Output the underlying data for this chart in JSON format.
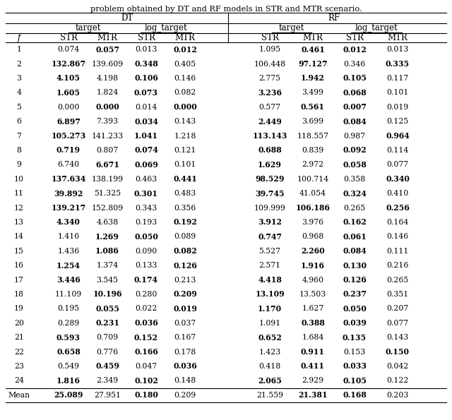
{
  "title_top": "problem obtained by DT and RF models in STR and MTR scenario.",
  "rows": [
    {
      "f": "1",
      "v": [
        "0.074",
        "0.057",
        "0.013",
        "0.012",
        "1.095",
        "0.461",
        "0.012",
        "0.013"
      ],
      "b": [
        false,
        true,
        false,
        true,
        false,
        true,
        true,
        false
      ]
    },
    {
      "f": "2",
      "v": [
        "132.867",
        "139.609",
        "0.348",
        "0.405",
        "106.448",
        "97.127",
        "0.346",
        "0.335"
      ],
      "b": [
        true,
        false,
        true,
        false,
        false,
        true,
        false,
        true
      ]
    },
    {
      "f": "3",
      "v": [
        "4.105",
        "4.198",
        "0.106",
        "0.146",
        "2.775",
        "1.942",
        "0.105",
        "0.117"
      ],
      "b": [
        true,
        false,
        true,
        false,
        false,
        true,
        true,
        false
      ]
    },
    {
      "f": "4",
      "v": [
        "1.605",
        "1.824",
        "0.073",
        "0.082",
        "3.236",
        "3.499",
        "0.068",
        "0.101"
      ],
      "b": [
        true,
        false,
        true,
        false,
        true,
        false,
        true,
        false
      ]
    },
    {
      "f": "5",
      "v": [
        "0.000",
        "0.000",
        "0.014",
        "0.000",
        "0.577",
        "0.561",
        "0.007",
        "0.019"
      ],
      "b": [
        false,
        true,
        false,
        true,
        false,
        true,
        true,
        false
      ]
    },
    {
      "f": "6",
      "v": [
        "6.897",
        "7.393",
        "0.034",
        "0.143",
        "2.449",
        "3.699",
        "0.084",
        "0.125"
      ],
      "b": [
        true,
        false,
        true,
        false,
        true,
        false,
        true,
        false
      ]
    },
    {
      "f": "7",
      "v": [
        "105.273",
        "141.233",
        "1.041",
        "1.218",
        "113.143",
        "118.557",
        "0.987",
        "0.964"
      ],
      "b": [
        true,
        false,
        true,
        false,
        true,
        false,
        false,
        true
      ]
    },
    {
      "f": "8",
      "v": [
        "0.719",
        "0.807",
        "0.074",
        "0.121",
        "0.688",
        "0.839",
        "0.092",
        "0.114"
      ],
      "b": [
        true,
        false,
        true,
        false,
        true,
        false,
        true,
        false
      ]
    },
    {
      "f": "9",
      "v": [
        "6.740",
        "6.671",
        "0.069",
        "0.101",
        "1.629",
        "2.972",
        "0.058",
        "0.077"
      ],
      "b": [
        false,
        true,
        true,
        false,
        true,
        false,
        true,
        false
      ]
    },
    {
      "f": "10",
      "v": [
        "137.634",
        "138.199",
        "0.463",
        "0.441",
        "98.529",
        "100.714",
        "0.358",
        "0.340"
      ],
      "b": [
        true,
        false,
        false,
        true,
        true,
        false,
        false,
        true
      ]
    },
    {
      "f": "11",
      "v": [
        "39.892",
        "51.325",
        "0.301",
        "0.483",
        "39.745",
        "41.054",
        "0.324",
        "0.410"
      ],
      "b": [
        true,
        false,
        true,
        false,
        true,
        false,
        true,
        false
      ]
    },
    {
      "f": "12",
      "v": [
        "139.217",
        "152.809",
        "0.343",
        "0.356",
        "109.999",
        "106.186",
        "0.265",
        "0.256"
      ],
      "b": [
        true,
        false,
        false,
        false,
        false,
        true,
        false,
        true
      ]
    },
    {
      "f": "13",
      "v": [
        "4.340",
        "4.638",
        "0.193",
        "0.192",
        "3.912",
        "3.976",
        "0.162",
        "0.164"
      ],
      "b": [
        true,
        false,
        false,
        true,
        true,
        false,
        true,
        false
      ]
    },
    {
      "f": "14",
      "v": [
        "1.416",
        "1.269",
        "0.050",
        "0.089",
        "0.747",
        "0.968",
        "0.061",
        "0.146"
      ],
      "b": [
        false,
        true,
        true,
        false,
        true,
        false,
        true,
        false
      ]
    },
    {
      "f": "15",
      "v": [
        "1.436",
        "1.086",
        "0.090",
        "0.082",
        "5.527",
        "2.260",
        "0.084",
        "0.111"
      ],
      "b": [
        false,
        true,
        false,
        true,
        false,
        true,
        true,
        false
      ]
    },
    {
      "f": "16",
      "v": [
        "1.254",
        "1.374",
        "0.133",
        "0.126",
        "2.571",
        "1.916",
        "0.130",
        "0.216"
      ],
      "b": [
        true,
        false,
        false,
        true,
        false,
        true,
        true,
        false
      ]
    },
    {
      "f": "17",
      "v": [
        "3.446",
        "3.545",
        "0.174",
        "0.213",
        "4.418",
        "4.960",
        "0.126",
        "0.265"
      ],
      "b": [
        true,
        false,
        true,
        false,
        true,
        false,
        true,
        false
      ]
    },
    {
      "f": "18",
      "v": [
        "11.109",
        "10.196",
        "0.280",
        "0.209",
        "13.109",
        "13.503",
        "0.237",
        "0.351"
      ],
      "b": [
        false,
        true,
        false,
        true,
        true,
        false,
        true,
        false
      ]
    },
    {
      "f": "19",
      "v": [
        "0.195",
        "0.055",
        "0.022",
        "0.019",
        "1.170",
        "1.627",
        "0.050",
        "0.207"
      ],
      "b": [
        false,
        true,
        false,
        true,
        true,
        false,
        true,
        false
      ]
    },
    {
      "f": "20",
      "v": [
        "0.289",
        "0.231",
        "0.036",
        "0.037",
        "1.091",
        "0.388",
        "0.039",
        "0.077"
      ],
      "b": [
        false,
        true,
        true,
        false,
        false,
        true,
        true,
        false
      ]
    },
    {
      "f": "21",
      "v": [
        "0.593",
        "0.709",
        "0.152",
        "0.167",
        "0.652",
        "1.684",
        "0.135",
        "0.143"
      ],
      "b": [
        true,
        false,
        true,
        false,
        true,
        false,
        true,
        false
      ]
    },
    {
      "f": "22",
      "v": [
        "0.658",
        "0.776",
        "0.166",
        "0.178",
        "1.423",
        "0.911",
        "0.153",
        "0.150"
      ],
      "b": [
        true,
        false,
        true,
        false,
        false,
        true,
        false,
        true
      ]
    },
    {
      "f": "23",
      "v": [
        "0.549",
        "0.459",
        "0.047",
        "0.036",
        "0.418",
        "0.411",
        "0.033",
        "0.042"
      ],
      "b": [
        false,
        true,
        false,
        true,
        false,
        true,
        true,
        false
      ]
    },
    {
      "f": "24",
      "v": [
        "1.816",
        "2.349",
        "0.102",
        "0.148",
        "2.065",
        "2.929",
        "0.105",
        "0.122"
      ],
      "b": [
        true,
        false,
        true,
        false,
        true,
        false,
        true,
        false
      ]
    }
  ],
  "mean_v": [
    "25.089",
    "27.951",
    "0.180",
    "0.209",
    "21.559",
    "21.381",
    "0.168",
    "0.203"
  ],
  "mean_b": [
    true,
    false,
    true,
    false,
    false,
    true,
    true,
    false
  ]
}
